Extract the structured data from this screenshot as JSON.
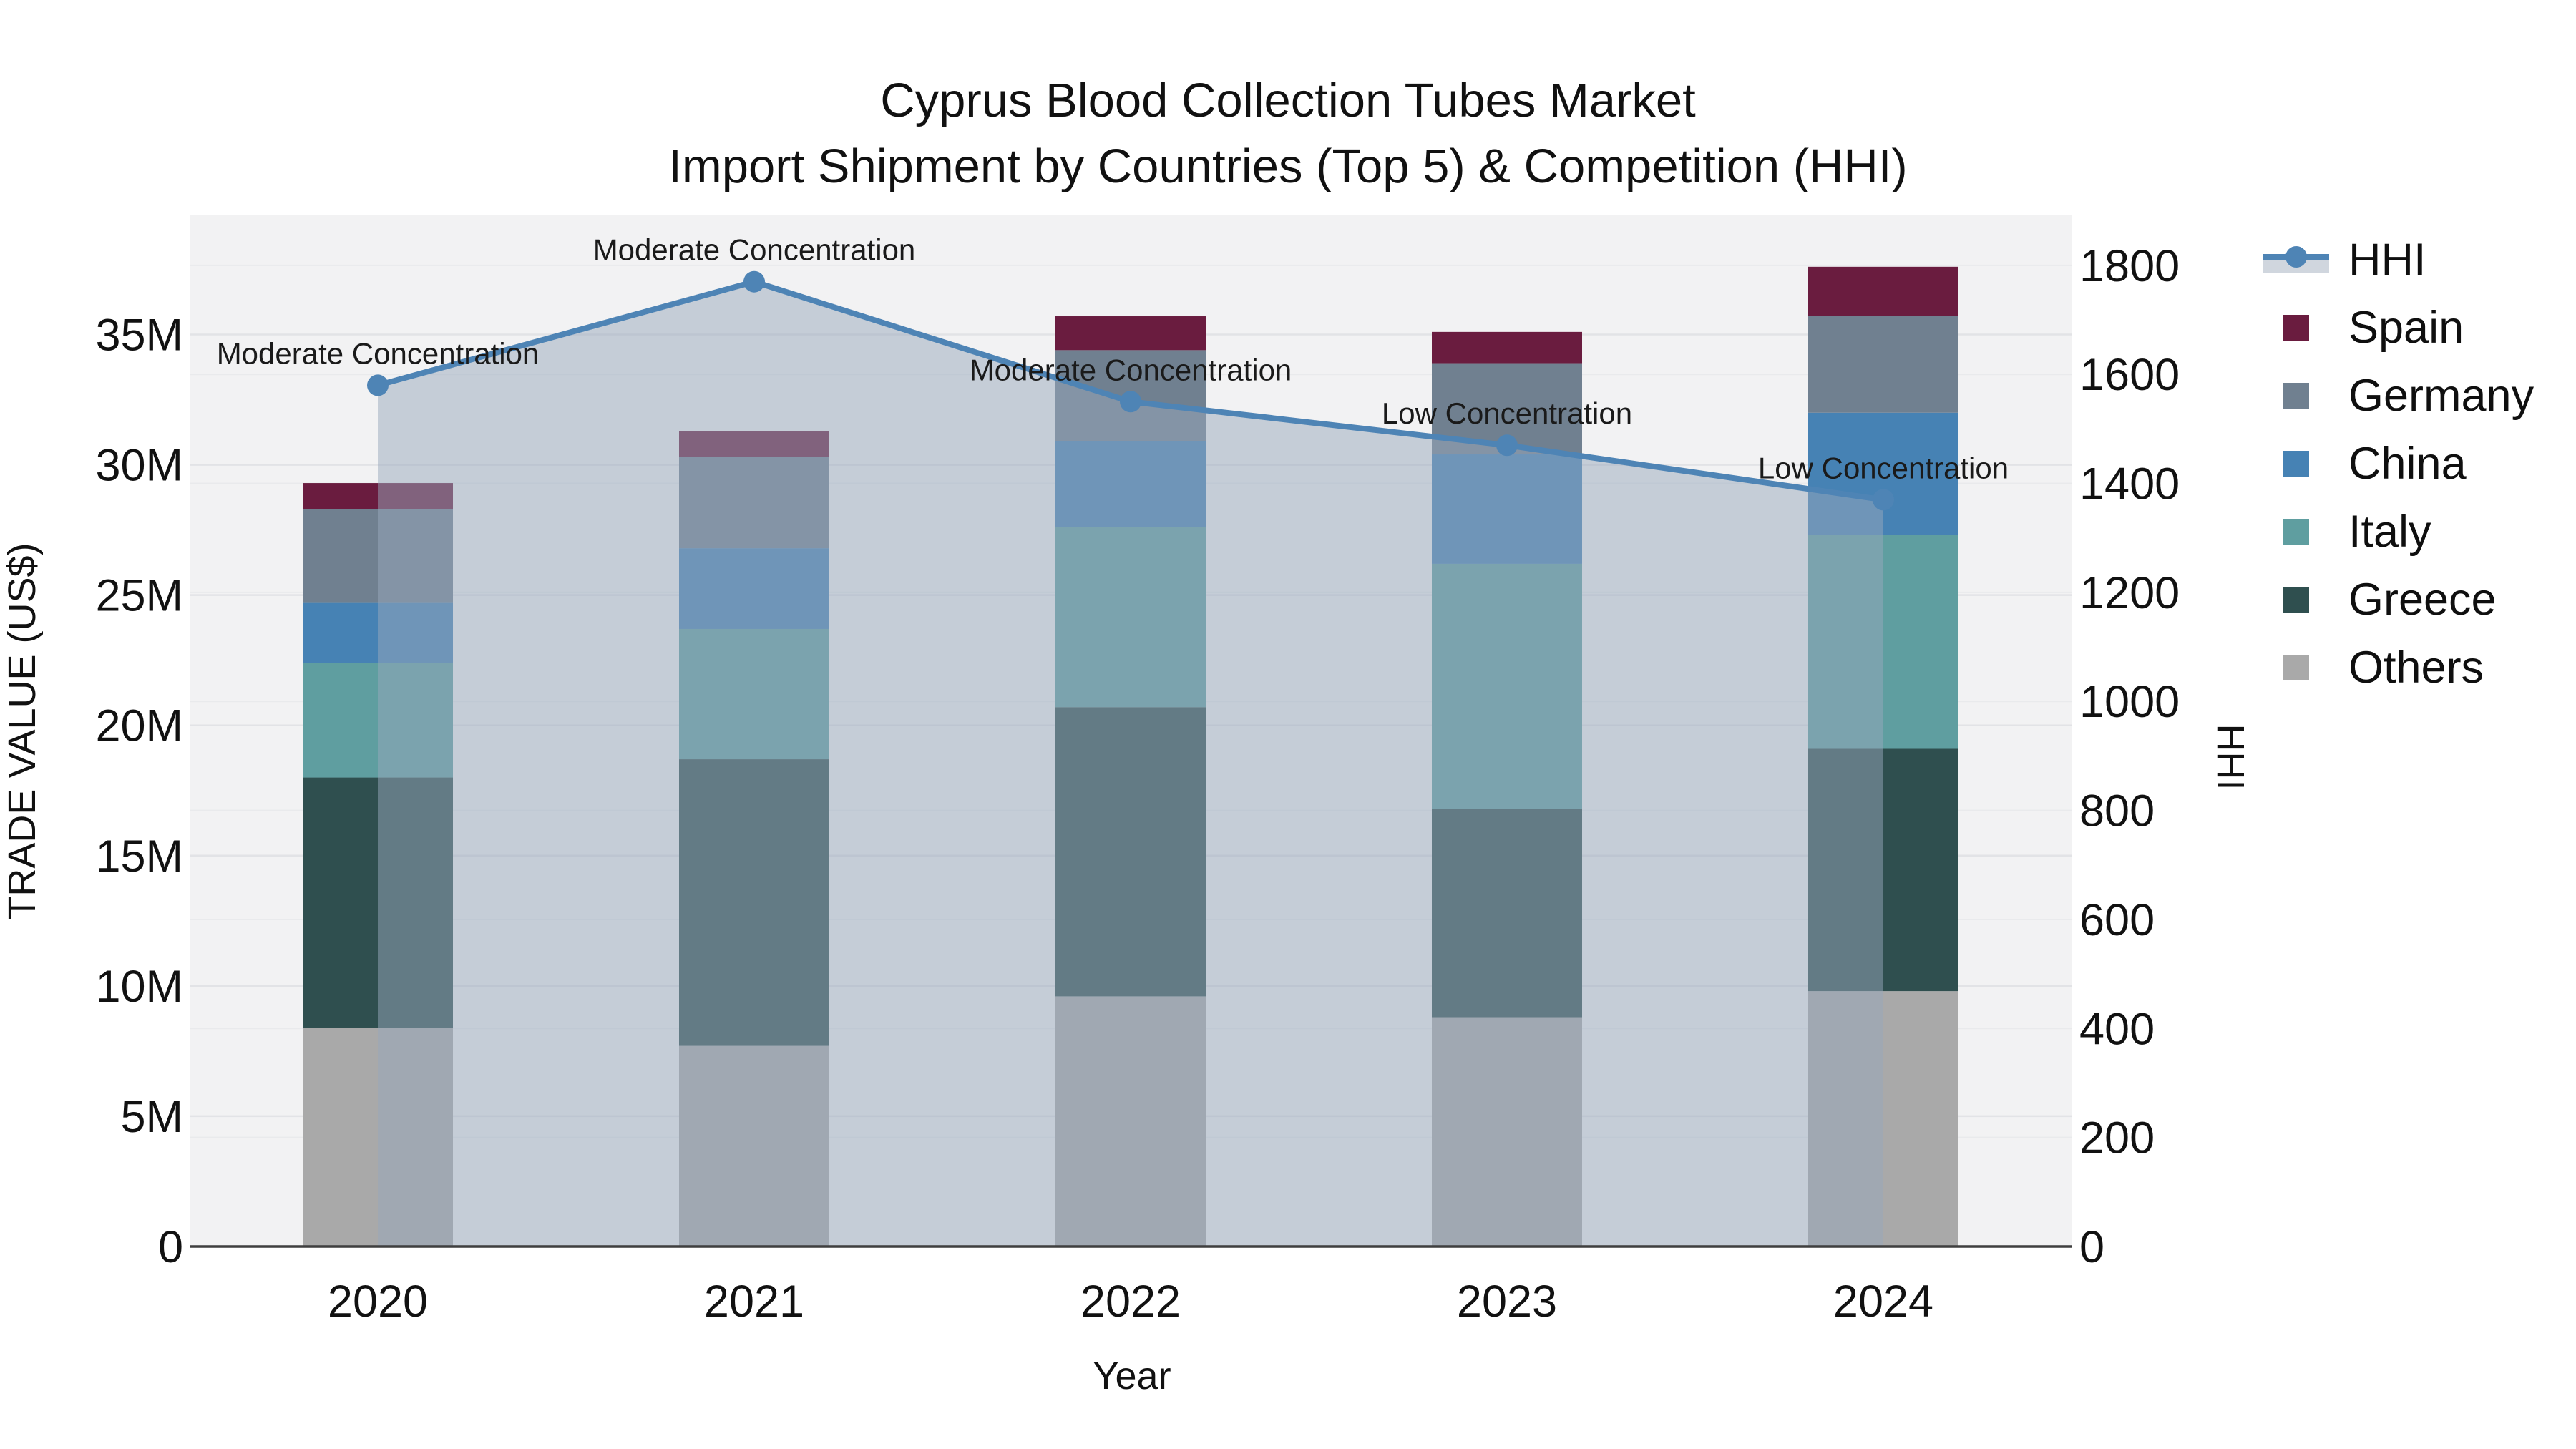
{
  "figure": {
    "title_line1": "Cyprus Blood Collection Tubes Market",
    "title_line2": "Import Shipment by Countries (Top 5) & Competition (HHI)"
  },
  "axes": {
    "x_title": "Year",
    "y_left_title": "TRADE VALUE (US$)",
    "y_right_title": "HHI"
  },
  "chart_data": {
    "type": "combo: stacked bar (left axis) + line with area fill (right axis)",
    "title": "Cyprus Blood Collection Tubes Market",
    "subtitle": "Import Shipment by Countries (Top 5) & Competition (HHI)",
    "xlabel": "Year",
    "ylabel": "TRADE VALUE (US$)",
    "ylabel2": "HHI",
    "categories": [
      "2020",
      "2021",
      "2022",
      "2023",
      "2024"
    ],
    "bar_unit": "million US$",
    "bar_series": [
      {
        "name": "Others",
        "color": "#a9a9a9",
        "values": [
          8.4,
          7.7,
          9.6,
          8.8,
          9.8
        ]
      },
      {
        "name": "Greece",
        "color": "#2f4f4f",
        "values": [
          9.6,
          11.0,
          11.1,
          8.0,
          9.3
        ]
      },
      {
        "name": "Italy",
        "color": "#5f9ea0",
        "values": [
          4.4,
          5.0,
          6.9,
          9.4,
          8.2
        ]
      },
      {
        "name": "China",
        "color": "#4682b4",
        "values": [
          2.3,
          3.1,
          3.3,
          4.2,
          4.7
        ]
      },
      {
        "name": "Germany",
        "color": "#708090",
        "values": [
          3.6,
          3.5,
          3.5,
          3.5,
          3.7
        ]
      },
      {
        "name": "Spain",
        "color": "#6a1c3f",
        "values": [
          1.0,
          1.0,
          1.3,
          1.2,
          1.9
        ]
      }
    ],
    "bar_totals": [
      29.3,
      31.3,
      35.7,
      35.1,
      37.6
    ],
    "line_series": {
      "name": "HHI",
      "color": "#4e84b5",
      "fill_color": "rgba(151,167,187,0.5)",
      "values": [
        1580,
        1770,
        1550,
        1470,
        1370
      ]
    },
    "annotations": [
      {
        "category": "2020",
        "text": "Moderate Concentration"
      },
      {
        "category": "2021",
        "text": "Moderate Concentration"
      },
      {
        "category": "2022",
        "text": "Moderate Concentration"
      },
      {
        "category": "2023",
        "text": "Low Concentration"
      },
      {
        "category": "2024",
        "text": "Low Concentration"
      }
    ],
    "y_left_ticks": [
      {
        "value": 0,
        "label": "0"
      },
      {
        "value": 5,
        "label": "5M"
      },
      {
        "value": 10,
        "label": "10M"
      },
      {
        "value": 15,
        "label": "15M"
      },
      {
        "value": 20,
        "label": "20M"
      },
      {
        "value": 25,
        "label": "25M"
      },
      {
        "value": 30,
        "label": "30M"
      },
      {
        "value": 35,
        "label": "35M"
      }
    ],
    "y_right_ticks": [
      0,
      200,
      400,
      600,
      800,
      1000,
      1200,
      1400,
      1600,
      1800
    ],
    "ylim_left": [
      0,
      39.6
    ],
    "ylim_right": [
      0,
      1893
    ],
    "legend_order": [
      "HHI",
      "Spain",
      "Germany",
      "China",
      "Italy",
      "Greece",
      "Others"
    ],
    "legend_position": "right",
    "grid": true,
    "colors": {
      "plot_background": "#f2f2f3",
      "paper_background": "#ffffff",
      "grid_left": "#e2e3e6",
      "grid_right": "#e9eaec",
      "axis_line": "#3f3f3f",
      "text": "#1c1c1c"
    }
  }
}
